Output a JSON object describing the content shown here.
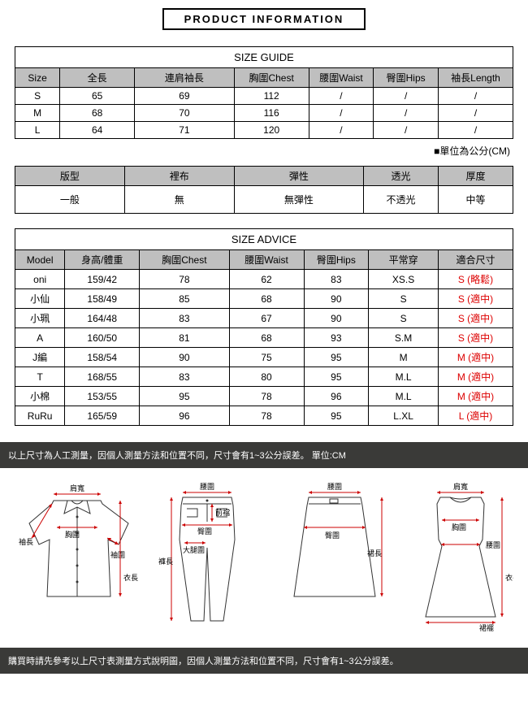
{
  "title": "PRODUCT INFORMATION",
  "size_guide": {
    "section_title": "SIZE GUIDE",
    "columns": [
      "Size",
      "全長",
      "連肩袖長",
      "胸圍Chest",
      "腰圍Waist",
      "臀圍Hips",
      "袖長Length"
    ],
    "rows": [
      [
        "S",
        "65",
        "69",
        "112",
        "/",
        "/",
        "/"
      ],
      [
        "M",
        "68",
        "70",
        "116",
        "/",
        "/",
        "/"
      ],
      [
        "L",
        "64",
        "71",
        "120",
        "/",
        "/",
        "/"
      ]
    ],
    "unit_note": "■單位為公分(CM)"
  },
  "attributes": {
    "columns": [
      "版型",
      "裡布",
      "彈性",
      "透光",
      "厚度"
    ],
    "values": [
      "一般",
      "無",
      "無彈性",
      "不透光",
      "中等"
    ]
  },
  "size_advice": {
    "section_title": "SIZE ADVICE",
    "columns": [
      "Model",
      "身高/體重",
      "胸圍Chest",
      "腰圍Waist",
      "臀圍Hips",
      "平常穿",
      "適合尺寸"
    ],
    "rows": [
      {
        "cells": [
          "oni",
          "159/42",
          "78",
          "62",
          "83",
          "XS.S"
        ],
        "fit": "S (略鬆)"
      },
      {
        "cells": [
          "小仙",
          "158/49",
          "85",
          "68",
          "90",
          "S"
        ],
        "fit": "S (適中)"
      },
      {
        "cells": [
          "小珮",
          "164/48",
          "83",
          "67",
          "90",
          "S"
        ],
        "fit": "S (適中)"
      },
      {
        "cells": [
          "A",
          "160/50",
          "81",
          "68",
          "93",
          "S.M"
        ],
        "fit": "S (適中)"
      },
      {
        "cells": [
          "J編",
          "158/54",
          "90",
          "75",
          "95",
          "M"
        ],
        "fit": "M (適中)"
      },
      {
        "cells": [
          "T",
          "168/55",
          "83",
          "80",
          "95",
          "M.L"
        ],
        "fit": "M (適中)"
      },
      {
        "cells": [
          "小棉",
          "153/55",
          "95",
          "78",
          "96",
          "M.L"
        ],
        "fit": "M (適中)"
      },
      {
        "cells": [
          "RuRu",
          "165/59",
          "96",
          "78",
          "95",
          "L.XL"
        ],
        "fit": "L (適中)"
      }
    ]
  },
  "note_top": "以上尺寸為人工測量，因個人測量方法和位置不同，尺寸會有1~3公分誤差。 單位:CM",
  "note_bottom": "購買時請先參考以上尺寸表測量方式說明圖，因個人測量方法和位置不同，尺寸會有1~3公分誤差。",
  "diagram_labels": {
    "shirt": {
      "shoulder": "肩寬",
      "chest": "胸圍",
      "sleeve": "袖長",
      "cuff": "袖圍",
      "length": "衣長"
    },
    "pants": {
      "waist": "腰圍",
      "rise": "前襠",
      "hip": "臀圍",
      "thigh": "大腿圍",
      "length": "褲長"
    },
    "skirt": {
      "waist": "腰圍",
      "hip": "臀圍",
      "length": "裙長"
    },
    "dress": {
      "shoulder": "肩寬",
      "chest": "胸圍",
      "waist": "腰圍",
      "length": "衣長",
      "hem": "裙襬"
    }
  },
  "colors": {
    "header_bg": "#bfbfbf",
    "border": "#000000",
    "red_text": "#dd0000",
    "dark_bar_bg": "#3a3a38",
    "measure_line": "#cc0000"
  }
}
